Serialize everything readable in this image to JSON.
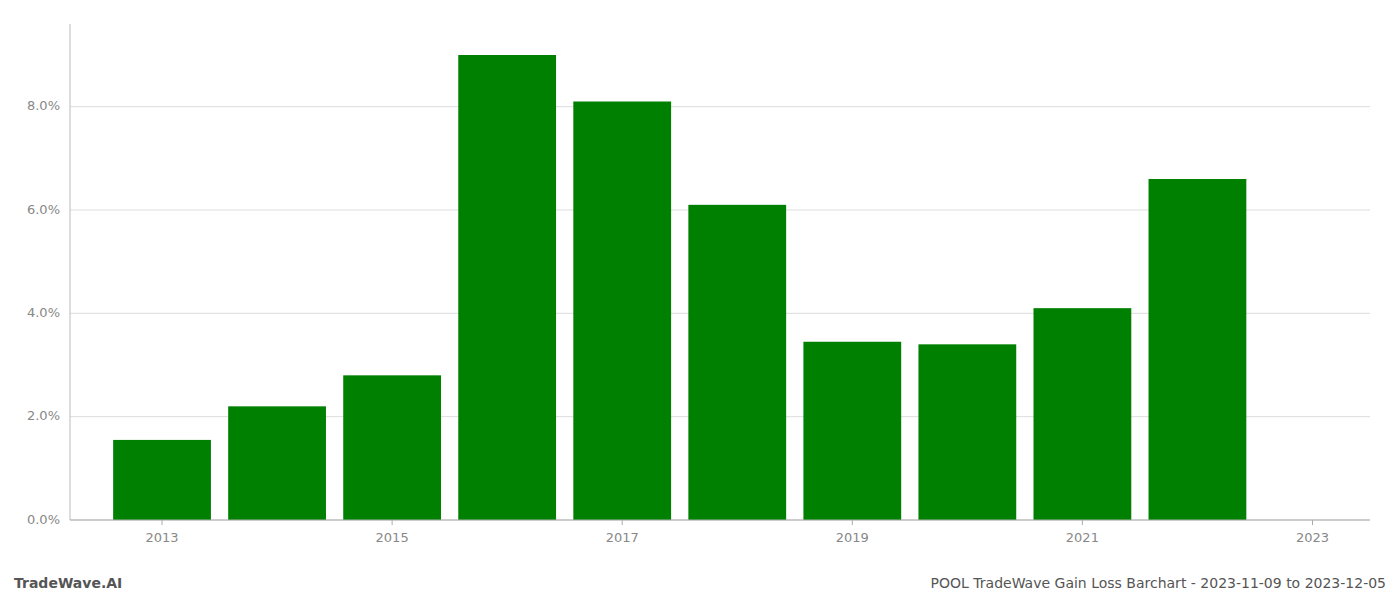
{
  "chart_data": {
    "type": "bar",
    "x": [
      2013,
      2014,
      2015,
      2016,
      2017,
      2018,
      2019,
      2020,
      2021,
      2022
    ],
    "values": [
      0.0155,
      0.022,
      0.028,
      0.09,
      0.081,
      0.061,
      0.0345,
      0.034,
      0.041,
      0.066
    ],
    "color": "#008000",
    "xlim": [
      2012.2,
      2023.5
    ],
    "xticks": [
      2013,
      2015,
      2017,
      2019,
      2021,
      2023
    ],
    "ylim": [
      0,
      0.096
    ],
    "yticks": [
      {
        "value": 0.0,
        "label": "0.0%"
      },
      {
        "value": 0.02,
        "label": "2.0%"
      },
      {
        "value": 0.04,
        "label": "4.0%"
      },
      {
        "value": 0.06,
        "label": "6.0%"
      },
      {
        "value": 0.08,
        "label": "8.0%"
      }
    ],
    "grid": true,
    "annotations": [
      "TradeWave.AI",
      "POOL TradeWave Gain Loss Barchart - 2023-11-09 to 2023-12-05"
    ]
  }
}
